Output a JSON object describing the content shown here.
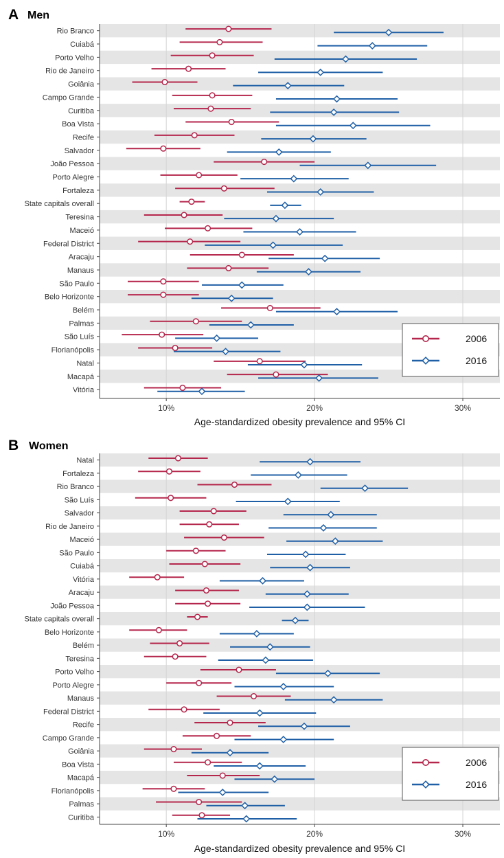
{
  "chart_data": [
    {
      "type": "forest",
      "panel_letter": "A",
      "title": "Men",
      "xlabel": "Age-standardized obesity prevalence and 95% CI",
      "xlim": [
        5.5,
        32.5
      ],
      "xticks": [
        10,
        20,
        30
      ],
      "xtick_labels": [
        "10%",
        "20%",
        "30%"
      ],
      "grid": "vertical",
      "legend_position": "bottom-right",
      "series": [
        {
          "name": "2006",
          "color": "#b5264c",
          "marker": "circle"
        },
        {
          "name": "2016",
          "color": "#1f5fa6",
          "marker": "diamond"
        }
      ],
      "rows": [
        {
          "label": "Rio Branco",
          "y2006": [
            14.2,
            11.3,
            17.1
          ],
          "y2016": [
            25.0,
            21.3,
            28.7
          ]
        },
        {
          "label": "Cuiabá",
          "y2006": [
            13.6,
            10.9,
            16.5
          ],
          "y2016": [
            23.9,
            20.2,
            27.6
          ]
        },
        {
          "label": "Porto Velho",
          "y2006": [
            13.1,
            10.3,
            15.9
          ],
          "y2016": [
            22.1,
            17.3,
            26.9
          ]
        },
        {
          "label": "Rio de Janeiro",
          "y2006": [
            11.5,
            9.0,
            14.0
          ],
          "y2016": [
            20.4,
            16.2,
            24.6
          ]
        },
        {
          "label": "Goiânia",
          "y2006": [
            9.9,
            7.7,
            12.1
          ],
          "y2016": [
            18.2,
            14.5,
            22.0
          ]
        },
        {
          "label": "Campo Grande",
          "y2006": [
            13.1,
            10.4,
            15.8
          ],
          "y2016": [
            21.5,
            17.4,
            25.6
          ]
        },
        {
          "label": "Curitiba",
          "y2006": [
            13.0,
            10.5,
            15.7
          ],
          "y2016": [
            21.3,
            17.0,
            25.7
          ]
        },
        {
          "label": "Boa Vista",
          "y2006": [
            14.4,
            11.3,
            17.6
          ],
          "y2016": [
            22.6,
            17.4,
            27.8
          ]
        },
        {
          "label": "Recife",
          "y2006": [
            11.9,
            9.2,
            14.6
          ],
          "y2016": [
            19.9,
            16.4,
            23.5
          ]
        },
        {
          "label": "Salvador",
          "y2006": [
            9.8,
            7.3,
            12.3
          ],
          "y2016": [
            17.6,
            14.1,
            21.1
          ]
        },
        {
          "label": "João Pessoa",
          "y2006": [
            16.6,
            13.2,
            20.0
          ],
          "y2016": [
            23.6,
            19.0,
            28.2
          ]
        },
        {
          "label": "Porto Alegre",
          "y2006": [
            12.2,
            9.6,
            14.8
          ],
          "y2016": [
            18.6,
            15.0,
            22.3
          ]
        },
        {
          "label": "Fortaleza",
          "y2006": [
            13.9,
            10.6,
            17.3
          ],
          "y2016": [
            20.4,
            16.8,
            24.0
          ]
        },
        {
          "label": "State capitals overall",
          "y2006": [
            11.7,
            10.9,
            12.6
          ],
          "y2016": [
            18.0,
            17.0,
            19.1
          ]
        },
        {
          "label": "Teresina",
          "y2006": [
            11.2,
            8.5,
            13.8
          ],
          "y2016": [
            17.4,
            13.9,
            21.3
          ]
        },
        {
          "label": "Maceió",
          "y2006": [
            12.8,
            9.9,
            15.8
          ],
          "y2016": [
            19.0,
            15.2,
            22.8
          ]
        },
        {
          "label": "Federal District",
          "y2006": [
            11.6,
            8.1,
            15.0
          ],
          "y2016": [
            17.2,
            12.6,
            21.9
          ]
        },
        {
          "label": "Aracaju",
          "y2006": [
            15.1,
            11.6,
            18.6
          ],
          "y2016": [
            20.7,
            16.9,
            24.4
          ]
        },
        {
          "label": "Manaus",
          "y2006": [
            14.2,
            11.4,
            16.9
          ],
          "y2016": [
            19.6,
            16.1,
            23.1
          ]
        },
        {
          "label": "São Paulo",
          "y2006": [
            9.8,
            7.4,
            12.2
          ],
          "y2016": [
            15.1,
            12.4,
            17.9
          ]
        },
        {
          "label": "Belo Horizonte",
          "y2006": [
            9.8,
            7.4,
            12.2
          ],
          "y2016": [
            14.4,
            11.7,
            17.2
          ]
        },
        {
          "label": "Belém",
          "y2006": [
            17.0,
            13.7,
            20.4
          ],
          "y2016": [
            21.5,
            17.4,
            25.6
          ]
        },
        {
          "label": "Palmas",
          "y2006": [
            12.0,
            8.9,
            15.1
          ],
          "y2016": [
            15.7,
            12.9,
            18.6
          ]
        },
        {
          "label": "São Luís",
          "y2006": [
            9.7,
            7.0,
            12.5
          ],
          "y2016": [
            13.4,
            10.6,
            16.2
          ]
        },
        {
          "label": "Florianópolis",
          "y2006": [
            10.6,
            8.1,
            13.1
          ],
          "y2016": [
            14.0,
            10.5,
            17.7
          ]
        },
        {
          "label": "Natal",
          "y2006": [
            16.3,
            13.2,
            19.4
          ],
          "y2016": [
            19.3,
            15.5,
            23.2
          ]
        },
        {
          "label": "Macapá",
          "y2006": [
            17.4,
            14.1,
            20.9
          ],
          "y2016": [
            20.3,
            16.2,
            24.3
          ]
        },
        {
          "label": "Vitória",
          "y2006": [
            11.1,
            8.5,
            13.7
          ],
          "y2016": [
            12.4,
            9.4,
            15.3
          ]
        }
      ]
    },
    {
      "type": "forest",
      "panel_letter": "B",
      "title": "Women",
      "xlabel": "Age-standardized obesity prevalence and 95% CI",
      "xlim": [
        5.5,
        32.5
      ],
      "xticks": [
        10,
        20,
        30
      ],
      "xtick_labels": [
        "10%",
        "20%",
        "30%"
      ],
      "grid": "vertical",
      "legend_position": "bottom-right",
      "series": [
        {
          "name": "2006",
          "color": "#b5264c",
          "marker": "circle"
        },
        {
          "name": "2016",
          "color": "#1f5fa6",
          "marker": "diamond"
        }
      ],
      "rows": [
        {
          "label": "Natal",
          "y2006": [
            10.8,
            8.8,
            12.8
          ],
          "y2016": [
            19.7,
            16.3,
            23.1
          ]
        },
        {
          "label": "Fortaleza",
          "y2006": [
            10.2,
            8.1,
            12.3
          ],
          "y2016": [
            18.9,
            15.7,
            22.2
          ]
        },
        {
          "label": "Rio Branco",
          "y2006": [
            14.6,
            12.1,
            17.1
          ],
          "y2016": [
            23.4,
            20.4,
            26.3
          ]
        },
        {
          "label": "São Luís",
          "y2006": [
            10.3,
            7.9,
            12.7
          ],
          "y2016": [
            18.2,
            14.7,
            21.7
          ]
        },
        {
          "label": "Salvador",
          "y2006": [
            13.2,
            10.9,
            15.4
          ],
          "y2016": [
            21.1,
            17.9,
            24.2
          ]
        },
        {
          "label": "Rio de Janeiro",
          "y2006": [
            12.9,
            10.9,
            14.9
          ],
          "y2016": [
            20.6,
            16.9,
            24.2
          ]
        },
        {
          "label": "Maceió",
          "y2006": [
            13.9,
            11.2,
            16.6
          ],
          "y2016": [
            21.4,
            18.1,
            24.6
          ]
        },
        {
          "label": "São Paulo",
          "y2006": [
            12.0,
            10.0,
            14.0
          ],
          "y2016": [
            19.4,
            16.8,
            22.1
          ]
        },
        {
          "label": "Cuiabá",
          "y2006": [
            12.6,
            10.2,
            15.0
          ],
          "y2016": [
            19.7,
            17.0,
            22.4
          ]
        },
        {
          "label": "Vitória",
          "y2006": [
            9.4,
            7.5,
            11.2
          ],
          "y2016": [
            16.5,
            13.6,
            19.3
          ]
        },
        {
          "label": "Aracaju",
          "y2006": [
            12.7,
            10.6,
            14.9
          ],
          "y2016": [
            19.5,
            16.7,
            22.3
          ]
        },
        {
          "label": "João Pessoa",
          "y2006": [
            12.8,
            10.6,
            15.0
          ],
          "y2016": [
            19.5,
            15.6,
            23.4
          ]
        },
        {
          "label": "State capitals overall",
          "y2006": [
            12.1,
            11.4,
            12.8
          ],
          "y2016": [
            18.7,
            17.8,
            19.6
          ]
        },
        {
          "label": "Belo Horizonte",
          "y2006": [
            9.5,
            7.5,
            11.4
          ],
          "y2016": [
            16.1,
            13.6,
            18.6
          ]
        },
        {
          "label": "Belém",
          "y2006": [
            10.9,
            8.9,
            12.9
          ],
          "y2016": [
            17.0,
            14.3,
            19.7
          ]
        },
        {
          "label": "Teresina",
          "y2006": [
            10.6,
            8.5,
            12.7
          ],
          "y2016": [
            16.7,
            13.5,
            19.9
          ]
        },
        {
          "label": "Porto Velho",
          "y2006": [
            14.9,
            12.3,
            17.4
          ],
          "y2016": [
            20.9,
            17.4,
            24.4
          ]
        },
        {
          "label": "Porto Alegre",
          "y2006": [
            12.2,
            10.0,
            14.4
          ],
          "y2016": [
            17.9,
            14.6,
            21.3
          ]
        },
        {
          "label": "Manaus",
          "y2006": [
            15.9,
            13.4,
            18.4
          ],
          "y2016": [
            21.3,
            18.0,
            24.6
          ]
        },
        {
          "label": "Federal District",
          "y2006": [
            11.2,
            8.8,
            13.6
          ],
          "y2016": [
            16.3,
            12.5,
            20.1
          ]
        },
        {
          "label": "Recife",
          "y2006": [
            14.3,
            11.9,
            16.7
          ],
          "y2016": [
            19.3,
            16.2,
            22.4
          ]
        },
        {
          "label": "Campo Grande",
          "y2006": [
            13.4,
            11.1,
            15.7
          ],
          "y2016": [
            17.9,
            14.6,
            21.3
          ]
        },
        {
          "label": "Goiânia",
          "y2006": [
            10.5,
            8.5,
            12.4
          ],
          "y2016": [
            14.3,
            11.7,
            16.9
          ]
        },
        {
          "label": "Boa Vista",
          "y2006": [
            12.8,
            10.5,
            15.1
          ],
          "y2016": [
            16.3,
            13.2,
            19.4
          ]
        },
        {
          "label": "Macapá",
          "y2006": [
            13.8,
            11.4,
            16.3
          ],
          "y2016": [
            17.3,
            14.6,
            20.0
          ]
        },
        {
          "label": "Florianópolis",
          "y2006": [
            10.5,
            8.4,
            12.6
          ],
          "y2016": [
            13.8,
            10.8,
            16.9
          ]
        },
        {
          "label": "Palmas",
          "y2006": [
            12.2,
            9.3,
            15.1
          ],
          "y2016": [
            15.3,
            12.7,
            18.0
          ]
        },
        {
          "label": "Curitiba",
          "y2006": [
            12.4,
            10.4,
            14.3
          ],
          "y2016": [
            15.4,
            12.1,
            18.8
          ]
        }
      ]
    }
  ]
}
